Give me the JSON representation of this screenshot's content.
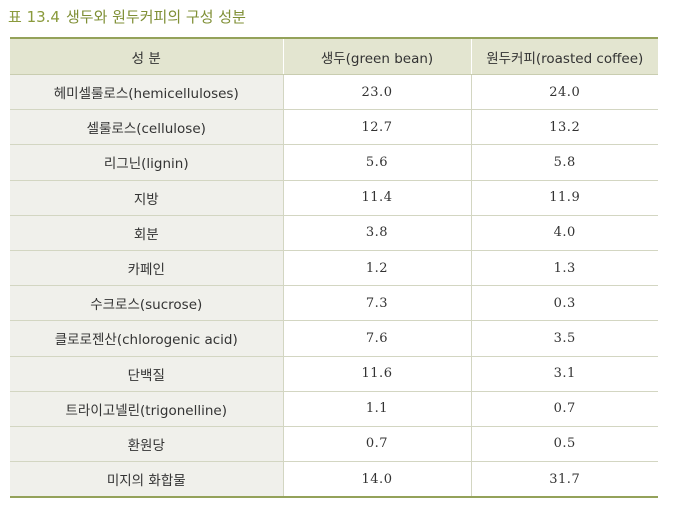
{
  "caption": {
    "label": "표 13.4",
    "title": "생두와 원두커피의 구성 성분"
  },
  "table": {
    "headers": [
      "성 분",
      "생두(green bean)",
      "원두커피(roasted coffee)"
    ],
    "rows": [
      {
        "component": "헤미셀룰로스(hemicelluloses)",
        "green": "23.0",
        "roasted": "24.0"
      },
      {
        "component": "셀룰로스(cellulose)",
        "green": "12.7",
        "roasted": "13.2"
      },
      {
        "component": "리그닌(lignin)",
        "green": "5.6",
        "roasted": "5.8"
      },
      {
        "component": "지방",
        "green": "11.4",
        "roasted": "11.9"
      },
      {
        "component": "회분",
        "green": "3.8",
        "roasted": "4.0"
      },
      {
        "component": "카페인",
        "green": "1.2",
        "roasted": "1.3"
      },
      {
        "component": "수크로스(sucrose)",
        "green": "7.3",
        "roasted": "0.3"
      },
      {
        "component": "클로로젠산(chlorogenic acid)",
        "green": "7.6",
        "roasted": "3.5"
      },
      {
        "component": "단백질",
        "green": "11.6",
        "roasted": "3.1"
      },
      {
        "component": "트라이고넬린(trigonelline)",
        "green": "1.1",
        "roasted": "0.7"
      },
      {
        "component": "환원당",
        "green": "0.7",
        "roasted": "0.5"
      },
      {
        "component": "미지의 화합물",
        "green": "14.0",
        "roasted": "31.7"
      }
    ]
  }
}
